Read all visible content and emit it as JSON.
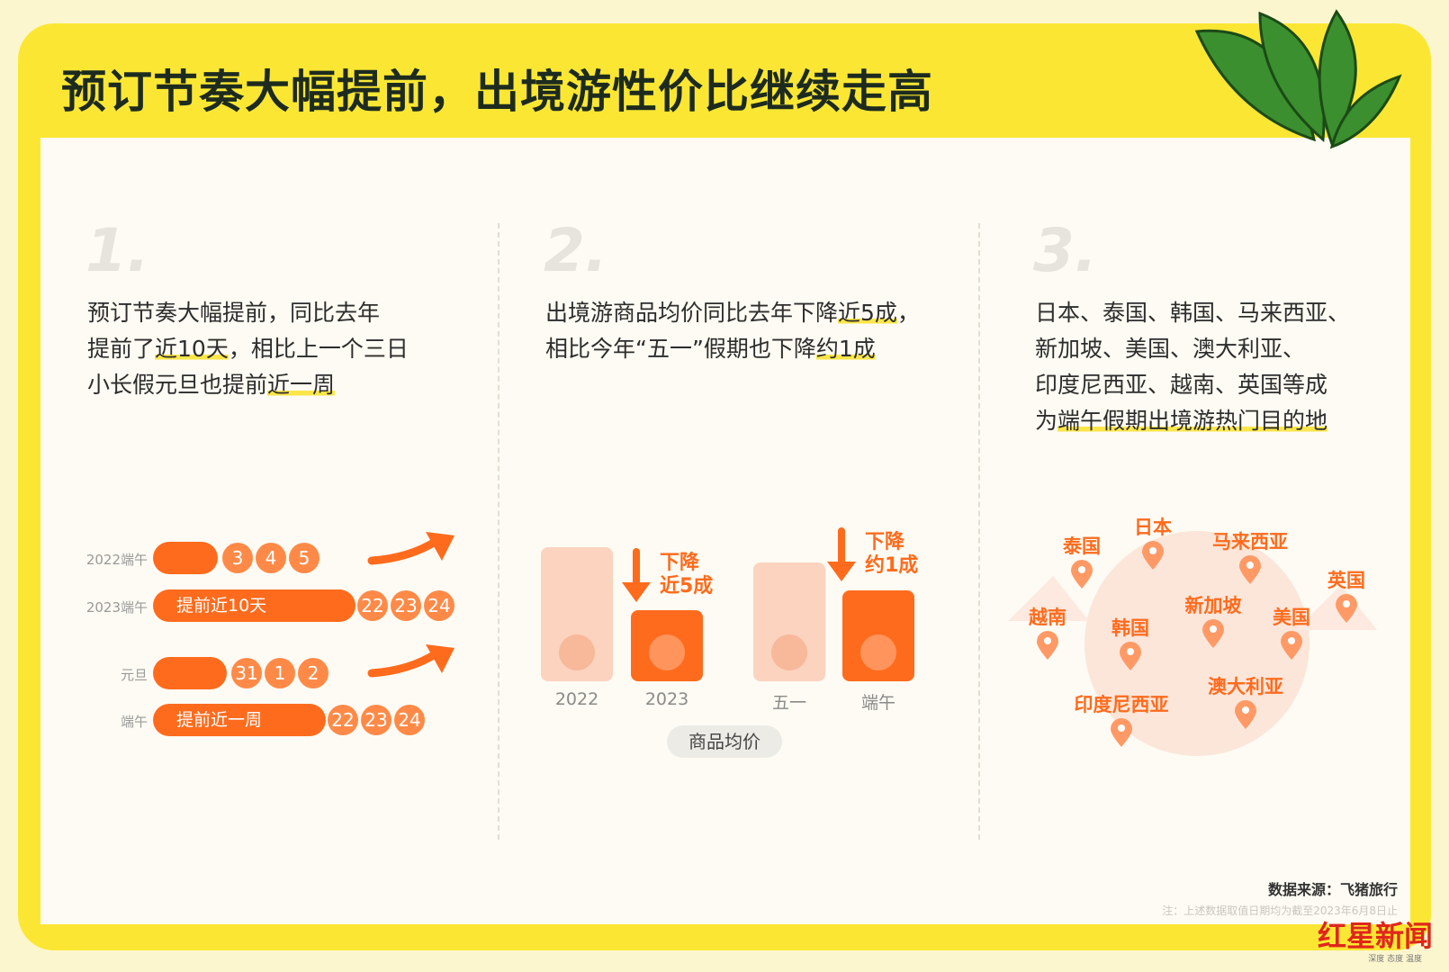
{
  "header": {
    "title": "预订节奏大幅提前，出境游性价比继续走高"
  },
  "sections": [
    {
      "number": "1.",
      "lines": [
        [
          {
            "text": "预订节奏大幅提前，同比去年"
          }
        ],
        [
          {
            "text": "提前了"
          },
          {
            "text": "近10天",
            "highlight": true
          },
          {
            "text": "，相比上一个三日"
          }
        ],
        [
          {
            "text": "小长假元旦也提前"
          },
          {
            "text": "近一周",
            "highlight": true
          }
        ]
      ],
      "timeline": [
        {
          "label": "2022端午",
          "bar": null,
          "days": [
            "3",
            "4",
            "5"
          ]
        },
        {
          "label": "2023端午",
          "bar": "提前近10天",
          "days": [
            "22",
            "23",
            "24"
          ]
        },
        {
          "label": "元旦",
          "bar": null,
          "days": [
            "31",
            "1",
            "2"
          ]
        },
        {
          "label": "端午",
          "bar": "提前近一周",
          "days": [
            "22",
            "23",
            "24"
          ]
        }
      ]
    },
    {
      "number": "2.",
      "lines": [
        [
          {
            "text": "出境游商品均价同比去年下降"
          },
          {
            "text": "近5成",
            "highlight": true
          },
          {
            "text": "，"
          }
        ],
        [
          {
            "text": "相比今年“五一”假期也下降"
          },
          {
            "text": "约1成",
            "highlight": true
          }
        ]
      ],
      "bars": [
        "2022",
        "2023",
        "五一",
        "端午"
      ],
      "annotations": [
        [
          "下降",
          "近5成"
        ],
        [
          "下降",
          "约1成"
        ]
      ],
      "axis_label": "商品均价"
    },
    {
      "number": "3.",
      "lines": [
        [
          {
            "text": "日本、泰国、韩国、马来西亚、"
          }
        ],
        [
          {
            "text": "新加坡、美国、澳大利亚、"
          }
        ],
        [
          {
            "text": "印度尼西亚、越南、英国等成"
          }
        ],
        [
          {
            "text": "为"
          },
          {
            "text": "端午假期出境游热门目的地",
            "highlight": true
          }
        ]
      ],
      "destinations": [
        "泰国",
        "日本",
        "马来西亚",
        "英国",
        "越南",
        "韩国",
        "新加坡",
        "美国",
        "印度尼西亚",
        "澳大利亚"
      ]
    }
  ],
  "footer": {
    "source": "数据来源：飞猪旅行",
    "note": "注：上述数据取值日期均为截至2023年6月8日止",
    "logo": "红星新闻",
    "slogan": "深度 态度 温度"
  }
}
